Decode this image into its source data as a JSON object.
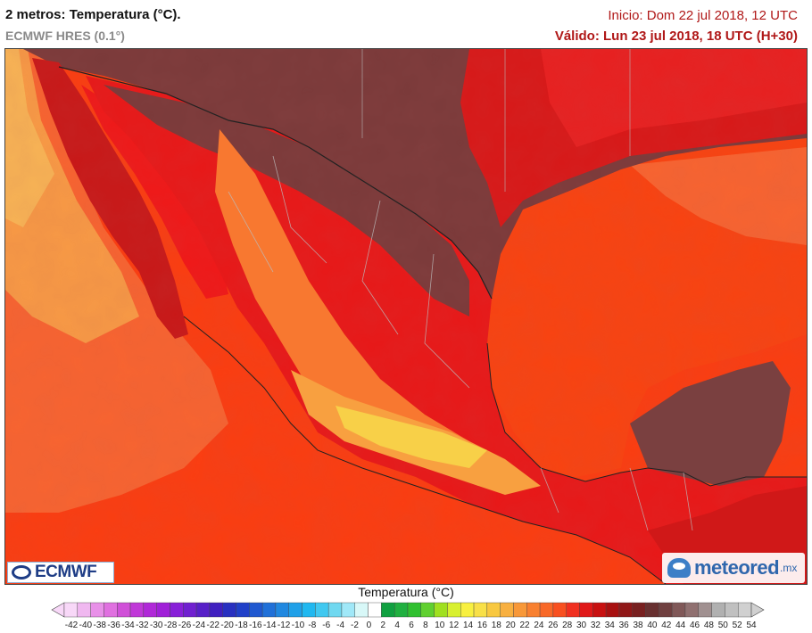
{
  "header": {
    "title": "2 metros: Temperatura (°C).",
    "model": "ECMWF HRES (0.1°)",
    "init": "Inicio: Dom 22 jul 2018, 12 UTC",
    "valid": "Válido: Lun 23 jul 2018, 18 UTC (H+30)"
  },
  "logos": {
    "left": "ECMWF",
    "right": "meteored",
    "right_suffix": ".mx"
  },
  "legend": {
    "title": "Temperatura (°C)",
    "colors": [
      "#f8d8f8",
      "#f0b8f0",
      "#e890e8",
      "#e070e0",
      "#d050d8",
      "#c038d8",
      "#b028d8",
      "#a020d8",
      "#8820d8",
      "#7020d0",
      "#5820c8",
      "#4020c0",
      "#2830c0",
      "#2040c8",
      "#2058d0",
      "#2070d8",
      "#2088e0",
      "#20a0e8",
      "#20b8f0",
      "#40c8f0",
      "#70d8f0",
      "#a0e8f8",
      "#d8f8f8",
      "#ffffff",
      "#10a040",
      "#20b040",
      "#30c030",
      "#60d030",
      "#a0e020",
      "#d8f030",
      "#f8f040",
      "#f8e048",
      "#f8c840",
      "#f8b040",
      "#f89838",
      "#f88030",
      "#f86828",
      "#f85020",
      "#f03020",
      "#e01818",
      "#c81010",
      "#a81010",
      "#901818",
      "#782020",
      "#683030",
      "#704040",
      "#805858",
      "#907070",
      "#a09090",
      "#b0b0b0",
      "#c0c0c0",
      "#d0d0d0"
    ],
    "ticks": [
      "-42",
      "-40",
      "-38",
      "-36",
      "-34",
      "-32",
      "-30",
      "-28",
      "-26",
      "-24",
      "-22",
      "-20",
      "-18",
      "-16",
      "-14",
      "-12",
      "-10",
      "-8",
      "-6",
      "-4",
      "-2",
      "0",
      "2",
      "4",
      "6",
      "8",
      "10",
      "12",
      "14",
      "16",
      "18",
      "20",
      "22",
      "24",
      "26",
      "28",
      "30",
      "32",
      "34",
      "36",
      "38",
      "40",
      "42",
      "44",
      "46",
      "48",
      "50",
      "52",
      "54"
    ]
  },
  "map": {
    "ocean_pacific": "#fb3d10",
    "ocean_gulf": "#f94310",
    "ocean_coast_warm": "#f86430",
    "land_hot": "#7a3a3a",
    "land_red": "#e81818",
    "land_orange": "#f88030",
    "land_yellow": "#f8e048"
  }
}
